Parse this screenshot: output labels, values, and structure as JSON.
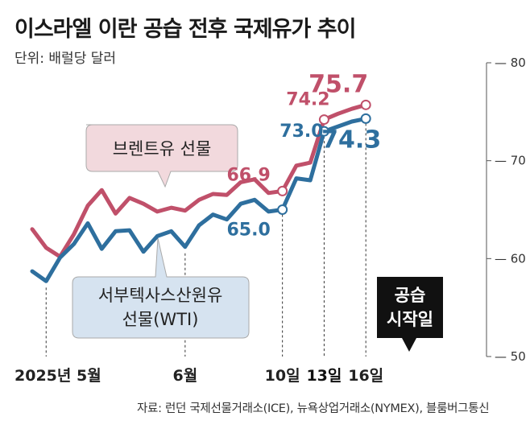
{
  "title": "이스라엘 이란 공습 전후 국제유가 추이",
  "unit": "단위: 배럴당 달러",
  "source": "자료: 런던 국제선물거래소(ICE), 뉴욕상업거래소(NYMEX), 블룸버그통신",
  "colors": {
    "brent": "#c0506a",
    "wti": "#2e6f9e",
    "brent_box": "#f2d9dd",
    "wti_box": "#d6e3f0",
    "strike_box": "#111111"
  },
  "chart_data": {
    "type": "line",
    "title": "이스라엘 이란 공습 전후 국제유가 추이",
    "ylabel": "단위: 배럴당 달러",
    "ylim": [
      50,
      80
    ],
    "y_ticks": [
      "80",
      "70",
      "60",
      "50"
    ],
    "y_tick_values": [
      80,
      70,
      60,
      50
    ],
    "x_range": [
      0,
      31
    ],
    "x_labels": [
      {
        "text": "2025년 5월",
        "x": 1
      },
      {
        "text": "6월",
        "x": 11
      },
      {
        "text": "10일",
        "x": 18
      },
      {
        "text": "13일",
        "x": 21
      },
      {
        "text": "16일",
        "x": 24
      }
    ],
    "series": [
      {
        "name": "브렌트유 선물",
        "x": [
          0,
          1,
          2,
          3,
          4,
          5,
          6,
          7,
          8,
          9,
          10,
          11,
          12,
          13,
          14,
          15,
          16,
          17,
          18,
          19,
          20,
          21,
          22,
          23,
          24
        ],
        "values": [
          63.0,
          61.1,
          60.2,
          62.5,
          65.4,
          67.0,
          64.6,
          66.2,
          65.6,
          64.8,
          65.2,
          64.9,
          66.0,
          66.6,
          66.5,
          67.8,
          68.1,
          66.7,
          66.9,
          69.5,
          69.8,
          74.2,
          74.8,
          75.3,
          75.7
        ]
      },
      {
        "name": "서부텍사스산원유 선물(WTI)",
        "x": [
          0,
          1,
          2,
          3,
          4,
          5,
          6,
          7,
          8,
          9,
          10,
          11,
          12,
          13,
          14,
          15,
          16,
          17,
          18,
          19,
          20,
          21,
          22,
          23,
          24
        ],
        "values": [
          58.7,
          57.7,
          60.1,
          61.5,
          63.6,
          61.0,
          62.8,
          62.9,
          60.7,
          62.3,
          62.8,
          61.2,
          63.4,
          64.5,
          64.0,
          65.6,
          66.0,
          64.8,
          65.0,
          68.2,
          68.0,
          73.0,
          73.5,
          74.0,
          74.3
        ]
      }
    ],
    "point_labels": [
      {
        "series": 0,
        "index": 18,
        "text": "66.9"
      },
      {
        "series": 0,
        "index": 21,
        "text": "74.2"
      },
      {
        "series": 0,
        "index": 24,
        "text": "75.7"
      },
      {
        "series": 1,
        "index": 18,
        "text": "65.0"
      },
      {
        "series": 1,
        "index": 21,
        "text": "73.0"
      },
      {
        "series": 1,
        "index": 24,
        "text": "74.3"
      }
    ],
    "callouts": {
      "brent": "브렌트유 선물",
      "wti_line1": "서부텍사스산원유",
      "wti_line2": "선물(WTI)",
      "strike_line1": "공습",
      "strike_line2": "시작일"
    }
  }
}
